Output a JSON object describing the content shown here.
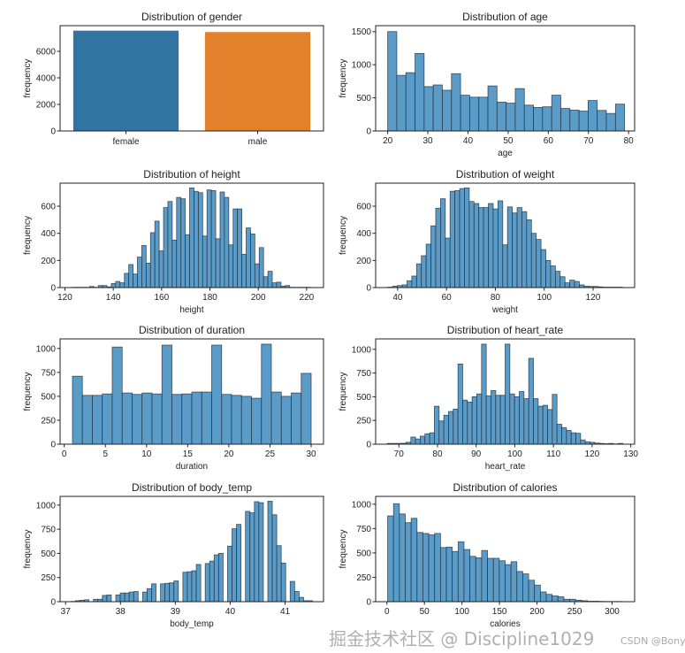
{
  "chart_data": [
    {
      "type": "bar",
      "title": "Distribution of gender",
      "xlabel": "",
      "ylabel": "frequency",
      "categories": [
        "female",
        "male"
      ],
      "values": [
        7553,
        7447
      ],
      "colors": [
        "#3274a1",
        "#e1812c"
      ],
      "ylim": [
        0,
        7930
      ],
      "yticks": [
        0,
        2000,
        4000,
        6000
      ]
    },
    {
      "type": "histogram",
      "title": "Distribution of age",
      "xlabel": "age",
      "ylabel": "frequency",
      "bin_start": 20,
      "bin_end": 79,
      "counts": [
        1500,
        840,
        880,
        1170,
        670,
        695,
        615,
        865,
        540,
        510,
        510,
        680,
        435,
        420,
        640,
        390,
        355,
        365,
        540,
        340,
        315,
        300,
        460,
        310,
        265,
        405
      ],
      "xlim": [
        17,
        81.5
      ],
      "ylim": [
        0,
        1590
      ],
      "xticks": [
        20,
        30,
        40,
        50,
        60,
        70,
        80
      ],
      "yticks": [
        0,
        500,
        1000,
        1500
      ]
    },
    {
      "type": "histogram",
      "title": "Distribution of height",
      "xlabel": "height",
      "ylabel": "frequency",
      "bin_start": 123,
      "bin_end": 222,
      "counts": [
        2,
        2,
        2,
        2,
        8,
        2,
        15,
        15,
        5,
        30,
        45,
        35,
        105,
        170,
        100,
        225,
        310,
        180,
        405,
        490,
        270,
        590,
        635,
        350,
        665,
        655,
        390,
        735,
        710,
        700,
        380,
        720,
        715,
        360,
        705,
        665,
        315,
        580,
        580,
        245,
        440,
        395,
        175,
        295,
        80,
        120,
        35,
        40,
        10,
        15,
        2,
        2,
        2,
        2,
        2
      ],
      "xlim": [
        118,
        227
      ],
      "ylim": [
        0,
        770
      ],
      "xticks": [
        120,
        140,
        160,
        180,
        200,
        220
      ],
      "yticks": [
        0,
        200,
        400,
        600
      ]
    },
    {
      "type": "histogram",
      "title": "Distribution of weight",
      "xlabel": "weight",
      "ylabel": "frequency",
      "bin_start": 36,
      "bin_end": 132,
      "counts": [
        3,
        10,
        15,
        20,
        50,
        85,
        175,
        235,
        320,
        455,
        585,
        655,
        365,
        710,
        715,
        730,
        735,
        635,
        620,
        590,
        590,
        620,
        580,
        640,
        315,
        595,
        550,
        590,
        560,
        500,
        400,
        355,
        280,
        200,
        160,
        120,
        80,
        35,
        55,
        45,
        20,
        10,
        8,
        8,
        5,
        3,
        3,
        3,
        3
      ],
      "xlim": [
        31,
        137
      ],
      "ylim": [
        0,
        770
      ],
      "xticks": [
        40,
        60,
        80,
        100,
        120
      ],
      "yticks": [
        0,
        200,
        400,
        600
      ]
    },
    {
      "type": "histogram",
      "title": "Distribution of duration",
      "xlabel": "duration",
      "ylabel": "frequency",
      "bin_start": 1,
      "bin_end": 30,
      "counts": [
        710,
        510,
        510,
        525,
        1015,
        535,
        520,
        535,
        525,
        1035,
        520,
        525,
        545,
        545,
        1035,
        520,
        510,
        500,
        480,
        1045,
        545,
        500,
        535,
        740
      ],
      "xlim": [
        -0.5,
        31.5
      ],
      "ylim": [
        0,
        1100
      ],
      "xticks": [
        0,
        5,
        10,
        15,
        20,
        25,
        30
      ],
      "yticks": [
        0,
        250,
        500,
        750,
        1000
      ]
    },
    {
      "type": "histogram",
      "title": "Distribution of heart_rate",
      "xlabel": "heart_rate",
      "ylabel": "frequency",
      "bin_start": 67,
      "bin_end": 128,
      "counts": [
        8,
        8,
        8,
        10,
        20,
        75,
        55,
        85,
        110,
        120,
        400,
        245,
        305,
        345,
        370,
        845,
        465,
        445,
        500,
        530,
        1055,
        510,
        565,
        515,
        515,
        1055,
        530,
        500,
        555,
        480,
        905,
        480,
        400,
        410,
        365,
        525,
        210,
        175,
        145,
        120,
        115,
        45,
        25,
        20,
        12,
        8,
        5,
        8,
        3,
        8
      ],
      "xlim": [
        64,
        131
      ],
      "ylim": [
        0,
        1110
      ],
      "xticks": [
        70,
        80,
        90,
        100,
        110,
        120,
        130
      ],
      "yticks": [
        0,
        250,
        500,
        750,
        1000
      ]
    },
    {
      "type": "histogram",
      "title": "Distribution of body_temp",
      "xlabel": "body_temp",
      "ylabel": "frequency",
      "bin_start": 37.1,
      "bin_end": 41.5,
      "counts": [
        3,
        10,
        15,
        20,
        0,
        25,
        25,
        65,
        70,
        0,
        70,
        90,
        90,
        100,
        105,
        0,
        100,
        135,
        185,
        0,
        185,
        190,
        195,
        215,
        0,
        305,
        310,
        320,
        385,
        0,
        395,
        420,
        485,
        500,
        0,
        575,
        755,
        800,
        0,
        935,
        920,
        1035,
        1025,
        0,
        1040,
        900,
        580,
        400,
        0,
        210,
        105,
        45,
        10,
        10
      ],
      "xlim": [
        36.9,
        41.7
      ],
      "ylim": [
        0,
        1090
      ],
      "xticks": [
        37,
        38,
        39,
        40,
        41
      ],
      "yticks": [
        0,
        250,
        500,
        750,
        1000
      ]
    },
    {
      "type": "histogram",
      "title": "Distribution of calories",
      "xlabel": "calories",
      "ylabel": "frequency",
      "bin_start": 1,
      "bin_end": 314,
      "counts": [
        880,
        1005,
        900,
        810,
        855,
        710,
        700,
        685,
        700,
        555,
        560,
        515,
        615,
        535,
        465,
        450,
        525,
        445,
        445,
        420,
        380,
        410,
        310,
        285,
        220,
        170,
        100,
        75,
        60,
        50,
        25,
        25,
        15,
        10,
        5,
        5,
        3,
        2,
        2,
        2
      ],
      "xlim": [
        -15,
        330
      ],
      "ylim": [
        0,
        1080
      ],
      "xticks": [
        0,
        50,
        100,
        150,
        200,
        250,
        300
      ],
      "yticks": [
        0,
        250,
        500,
        750,
        1000
      ]
    }
  ],
  "bar_color": "#5b9bc8",
  "edge_color": "#1f2f3c",
  "watermark": {
    "text": "掘金技术社区 @ Discipline1029",
    "source": "CSDN @Bony-"
  }
}
